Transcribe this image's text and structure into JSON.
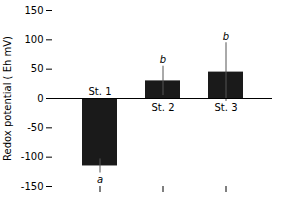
{
  "chart_data": {
    "type": "bar",
    "categories": [
      "St. 1",
      "St. 2",
      "St. 3"
    ],
    "values": [
      -115,
      30,
      45
    ],
    "errors": [
      12,
      25,
      50
    ],
    "significance_labels": [
      "a",
      "b",
      "b"
    ],
    "color": "#1a1a1a",
    "ylabel": "Redox potential ( Eh mV)",
    "ylim": [
      -150,
      150
    ],
    "yticks": [
      -150,
      -100,
      -50,
      0,
      50,
      100,
      150
    ],
    "grid": false,
    "tick_labels": "y"
  }
}
